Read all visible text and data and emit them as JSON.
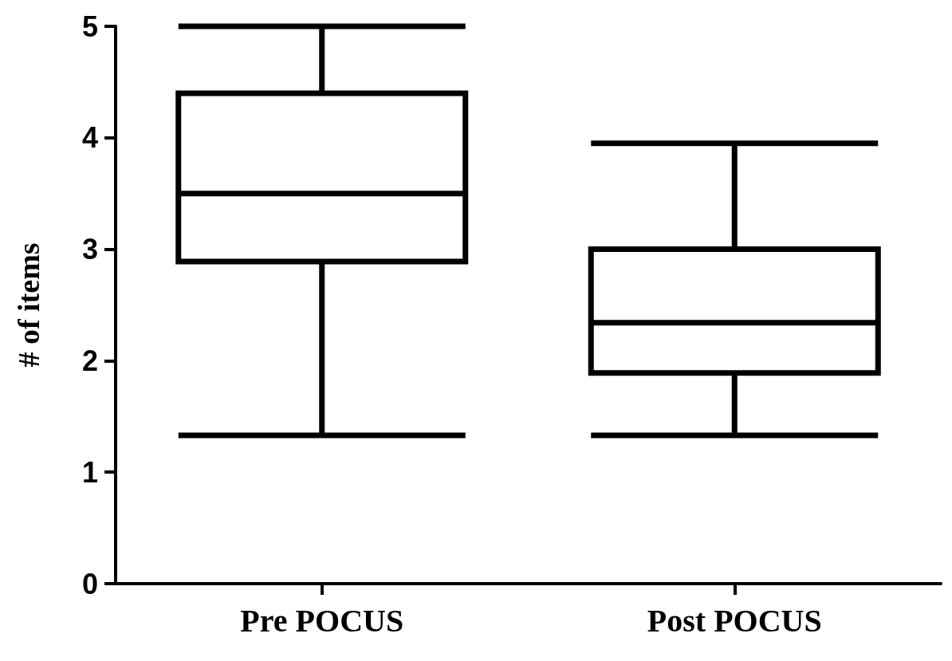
{
  "chart_data": {
    "type": "box",
    "ylabel": "# of items",
    "categories": [
      "Pre POCUS",
      "Post POCUS"
    ],
    "boxes": [
      {
        "low": 1.33,
        "q1": 2.89,
        "median": 3.5,
        "q3": 4.4,
        "high": 5
      },
      {
        "low": 1.33,
        "q1": 1.89,
        "median": 2.34,
        "q3": 3.0,
        "high": 3.95
      }
    ],
    "ylim": [
      0,
      5
    ],
    "yticks": [
      0,
      1,
      2,
      3,
      4,
      5
    ]
  }
}
